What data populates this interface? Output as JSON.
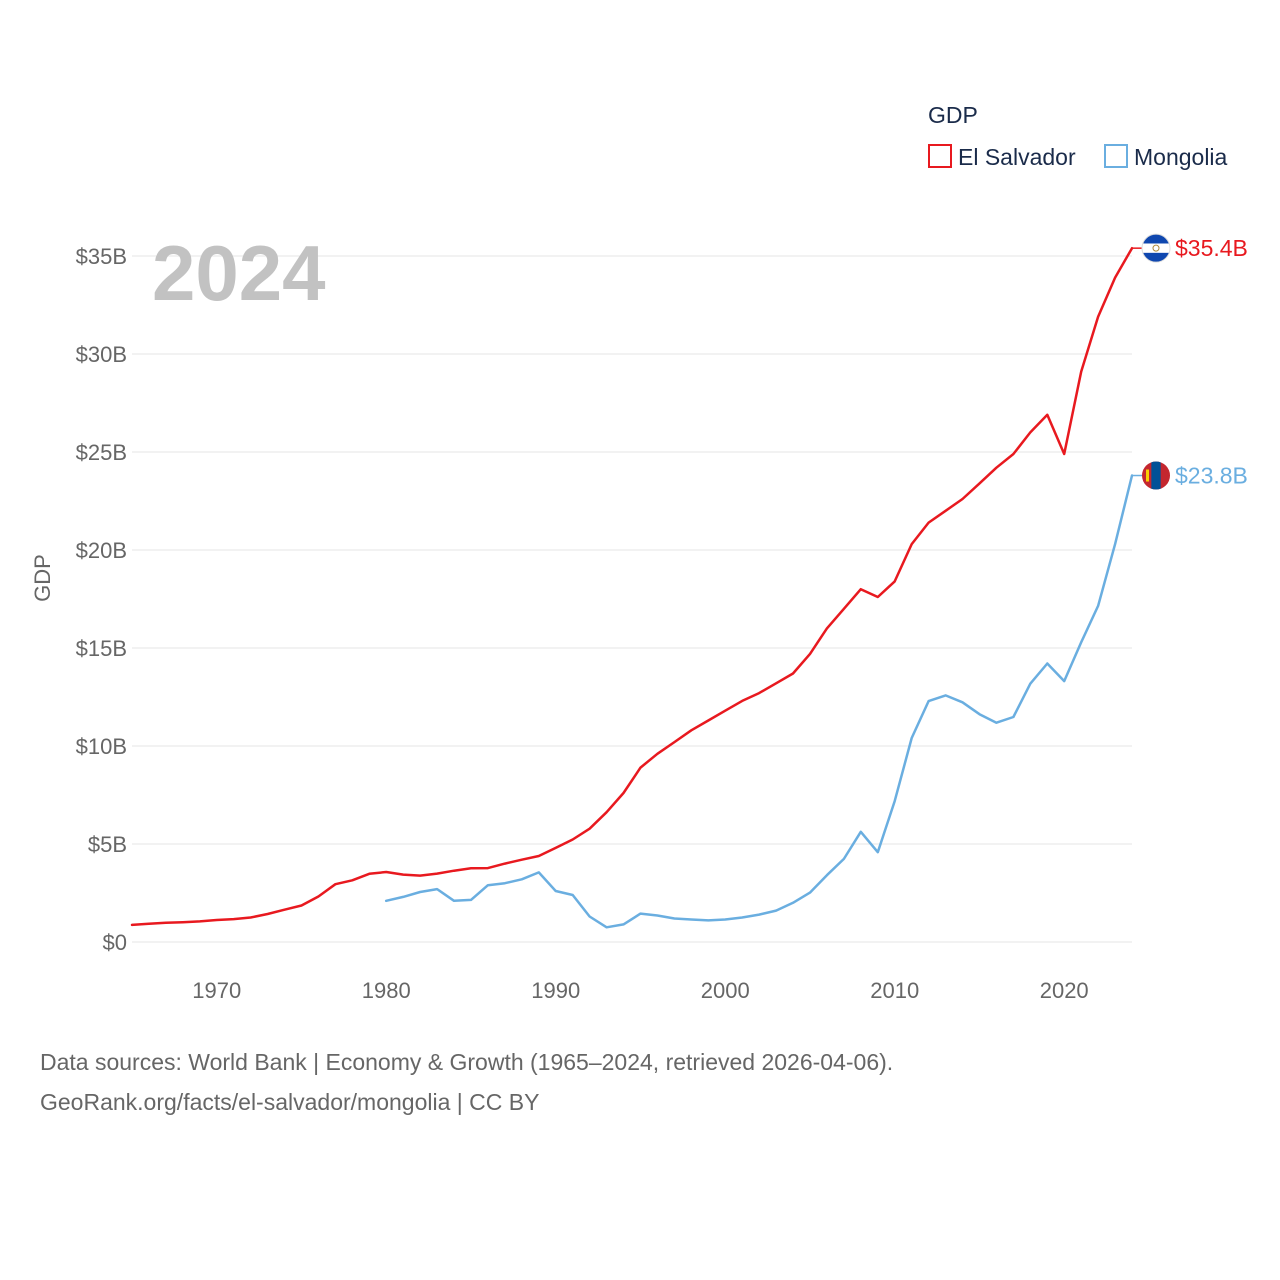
{
  "chart_data": {
    "type": "line",
    "highlight_year_label": "2024",
    "ylabel": "GDP",
    "xlabel": "",
    "xlim": [
      1965,
      2024
    ],
    "ylim": [
      0,
      35
    ],
    "x_ticks": [
      1970,
      1980,
      1990,
      2000,
      2010,
      2020
    ],
    "x_tick_labels": [
      "1970",
      "1980",
      "1990",
      "2000",
      "2010",
      "2020"
    ],
    "y_ticks": [
      0,
      5,
      10,
      15,
      20,
      25,
      30,
      35
    ],
    "y_tick_labels": [
      "$0",
      "$5B",
      "$10B",
      "$15B",
      "$20B",
      "$25B",
      "$30B",
      "$35B"
    ],
    "legend": {
      "title": "GDP",
      "position": "top-right"
    },
    "series": [
      {
        "name": "El Salvador",
        "color": "#e8191f",
        "end_label": "$35.4B",
        "flag_icon": "el-salvador-flag-icon",
        "x": [
          1965,
          1966,
          1967,
          1968,
          1969,
          1970,
          1971,
          1972,
          1973,
          1974,
          1975,
          1976,
          1977,
          1978,
          1979,
          1980,
          1981,
          1982,
          1983,
          1984,
          1985,
          1986,
          1987,
          1988,
          1989,
          1990,
          1991,
          1992,
          1993,
          1994,
          1995,
          1996,
          1997,
          1998,
          1999,
          2000,
          2001,
          2002,
          2003,
          2004,
          2005,
          2006,
          2007,
          2008,
          2009,
          2010,
          2011,
          2012,
          2013,
          2014,
          2015,
          2016,
          2017,
          2018,
          2019,
          2020,
          2021,
          2022,
          2023,
          2024
        ],
        "values": [
          0.87,
          0.93,
          0.98,
          1.01,
          1.05,
          1.12,
          1.17,
          1.25,
          1.43,
          1.65,
          1.86,
          2.32,
          2.95,
          3.15,
          3.48,
          3.57,
          3.44,
          3.39,
          3.49,
          3.64,
          3.76,
          3.77,
          4.0,
          4.2,
          4.39,
          4.8,
          5.23,
          5.78,
          6.62,
          7.6,
          8.9,
          9.6,
          10.2,
          10.8,
          11.3,
          11.8,
          12.3,
          12.7,
          13.2,
          13.7,
          14.7,
          16.0,
          17.0,
          18.0,
          17.6,
          18.4,
          20.3,
          21.4,
          22.0,
          22.6,
          23.4,
          24.2,
          24.9,
          26.0,
          26.9,
          24.9,
          29.1,
          31.9,
          33.9,
          35.4
        ]
      },
      {
        "name": "Mongolia",
        "color": "#6aaee0",
        "end_label": "$23.8B",
        "flag_icon": "mongolia-flag-icon",
        "x": [
          1980,
          1981,
          1982,
          1983,
          1984,
          1985,
          1986,
          1987,
          1988,
          1989,
          1990,
          1991,
          1992,
          1993,
          1994,
          1995,
          1996,
          1997,
          1998,
          1999,
          2000,
          2001,
          2002,
          2003,
          2004,
          2005,
          2006,
          2007,
          2008,
          2009,
          2010,
          2011,
          2012,
          2013,
          2014,
          2015,
          2016,
          2017,
          2018,
          2019,
          2020,
          2021,
          2022,
          2023,
          2024
        ],
        "values": [
          2.1,
          2.3,
          2.55,
          2.7,
          2.1,
          2.15,
          2.9,
          3.0,
          3.2,
          3.55,
          2.6,
          2.4,
          1.3,
          0.75,
          0.9,
          1.45,
          1.35,
          1.2,
          1.15,
          1.1,
          1.15,
          1.25,
          1.4,
          1.6,
          2.0,
          2.52,
          3.41,
          4.24,
          5.62,
          4.58,
          7.19,
          10.41,
          12.29,
          12.58,
          12.23,
          11.62,
          11.19,
          11.48,
          13.18,
          14.21,
          13.31,
          15.29,
          17.15,
          20.3,
          23.8
        ]
      }
    ]
  },
  "source": {
    "line1": "Data sources: World Bank | Economy & Growth (1965–2024, retrieved 2026-04-06).",
    "line2": "GeoRank.org/facts/el-salvador/mongolia | CC BY"
  }
}
